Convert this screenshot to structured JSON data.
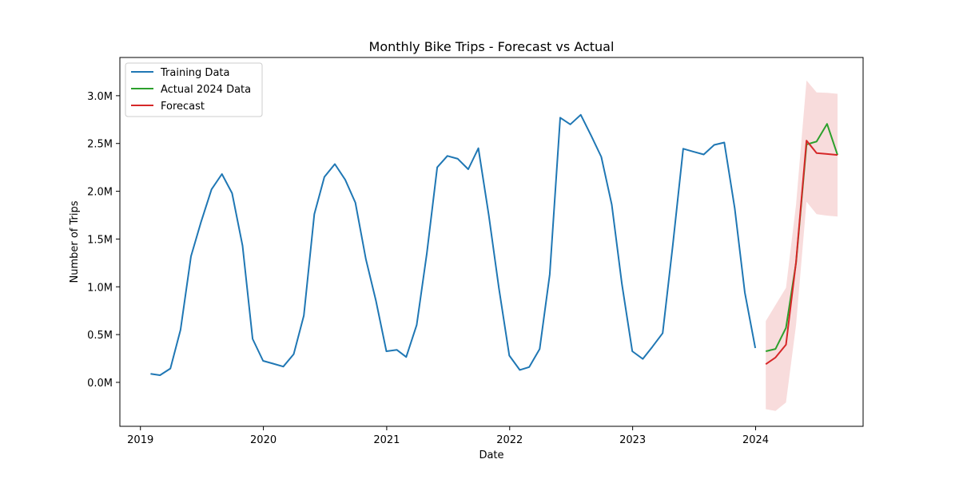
{
  "chart_data": {
    "type": "line",
    "title": "Monthly Bike Trips - Forecast vs Actual",
    "xlabel": "Date",
    "ylabel": "Number of Trips",
    "xlim": [
      "2018-11-01",
      "2024-11-15"
    ],
    "ylim": [
      -460000,
      3400000
    ],
    "x_ticks": [
      {
        "value": "2019-01-01",
        "label": "2019"
      },
      {
        "value": "2020-01-01",
        "label": "2020"
      },
      {
        "value": "2021-01-01",
        "label": "2021"
      },
      {
        "value": "2022-01-01",
        "label": "2022"
      },
      {
        "value": "2023-01-01",
        "label": "2023"
      },
      {
        "value": "2024-01-01",
        "label": "2024"
      }
    ],
    "y_ticks": [
      {
        "value": 0,
        "label": "0.0M"
      },
      {
        "value": 500000,
        "label": "0.5M"
      },
      {
        "value": 1000000,
        "label": "1.0M"
      },
      {
        "value": 1500000,
        "label": "1.5M"
      },
      {
        "value": 2000000,
        "label": "2.0M"
      },
      {
        "value": 2500000,
        "label": "2.5M"
      },
      {
        "value": 3000000,
        "label": "3.0M"
      }
    ],
    "grid": false,
    "legend_position": "top-left",
    "series": [
      {
        "name": "Training Data",
        "color": "#1f77b4",
        "x": [
          "2019-01-31",
          "2019-02-28",
          "2019-03-31",
          "2019-04-30",
          "2019-05-31",
          "2019-06-30",
          "2019-07-31",
          "2019-08-31",
          "2019-09-30",
          "2019-10-31",
          "2019-11-30",
          "2019-12-31",
          "2020-01-31",
          "2020-02-29",
          "2020-03-31",
          "2020-04-30",
          "2020-05-31",
          "2020-06-30",
          "2020-07-31",
          "2020-08-31",
          "2020-09-30",
          "2020-10-31",
          "2020-11-30",
          "2020-12-31",
          "2021-01-31",
          "2021-02-28",
          "2021-03-31",
          "2021-04-30",
          "2021-05-31",
          "2021-06-30",
          "2021-07-31",
          "2021-08-31",
          "2021-09-30",
          "2021-10-31",
          "2021-11-30",
          "2021-12-31",
          "2022-01-31",
          "2022-02-28",
          "2022-03-31",
          "2022-04-30",
          "2022-05-31",
          "2022-06-30",
          "2022-07-31",
          "2022-08-31",
          "2022-09-30",
          "2022-10-31",
          "2022-11-30",
          "2022-12-31",
          "2023-01-31",
          "2023-02-28",
          "2023-03-31",
          "2023-04-30",
          "2023-05-31",
          "2023-06-30",
          "2023-07-31",
          "2023-08-31",
          "2023-09-30",
          "2023-10-31",
          "2023-11-30",
          "2023-12-31"
        ],
        "values": [
          90000,
          75000,
          145000,
          550000,
          1320000,
          1680000,
          2020000,
          2180000,
          1980000,
          1430000,
          455000,
          225000,
          195000,
          165000,
          295000,
          700000,
          1760000,
          2150000,
          2285000,
          2120000,
          1880000,
          1290000,
          855000,
          325000,
          340000,
          265000,
          600000,
          1350000,
          2250000,
          2370000,
          2340000,
          2230000,
          2450000,
          1750000,
          985000,
          280000,
          130000,
          160000,
          350000,
          1130000,
          2770000,
          2700000,
          2800000,
          2580000,
          2360000,
          1860000,
          1030000,
          325000,
          245000,
          370000,
          515000,
          1430000,
          2445000,
          2415000,
          2385000,
          2485000,
          2510000,
          1820000,
          940000,
          360000
        ]
      },
      {
        "name": "Actual 2024 Data",
        "color": "#2ca02c",
        "x": [
          "2024-01-31",
          "2024-02-29",
          "2024-03-31",
          "2024-04-30",
          "2024-05-31",
          "2024-06-30",
          "2024-07-31",
          "2024-08-31"
        ],
        "values": [
          325000,
          350000,
          570000,
          1250000,
          2490000,
          2520000,
          2705000,
          2380000
        ]
      },
      {
        "name": "Forecast",
        "color": "#d62728",
        "x": [
          "2024-01-31",
          "2024-02-29",
          "2024-03-31",
          "2024-04-30",
          "2024-05-31",
          "2024-06-30",
          "2024-07-31",
          "2024-08-31"
        ],
        "values": [
          190000,
          260000,
          395000,
          1260000,
          2530000,
          2400000,
          2390000,
          2380000
        ],
        "lower": [
          -280000,
          -300000,
          -210000,
          600000,
          1890000,
          1760000,
          1745000,
          1735000
        ],
        "upper": [
          640000,
          810000,
          990000,
          1860000,
          3160000,
          3035000,
          3030000,
          3020000
        ]
      }
    ],
    "band_color": "#d62728"
  }
}
